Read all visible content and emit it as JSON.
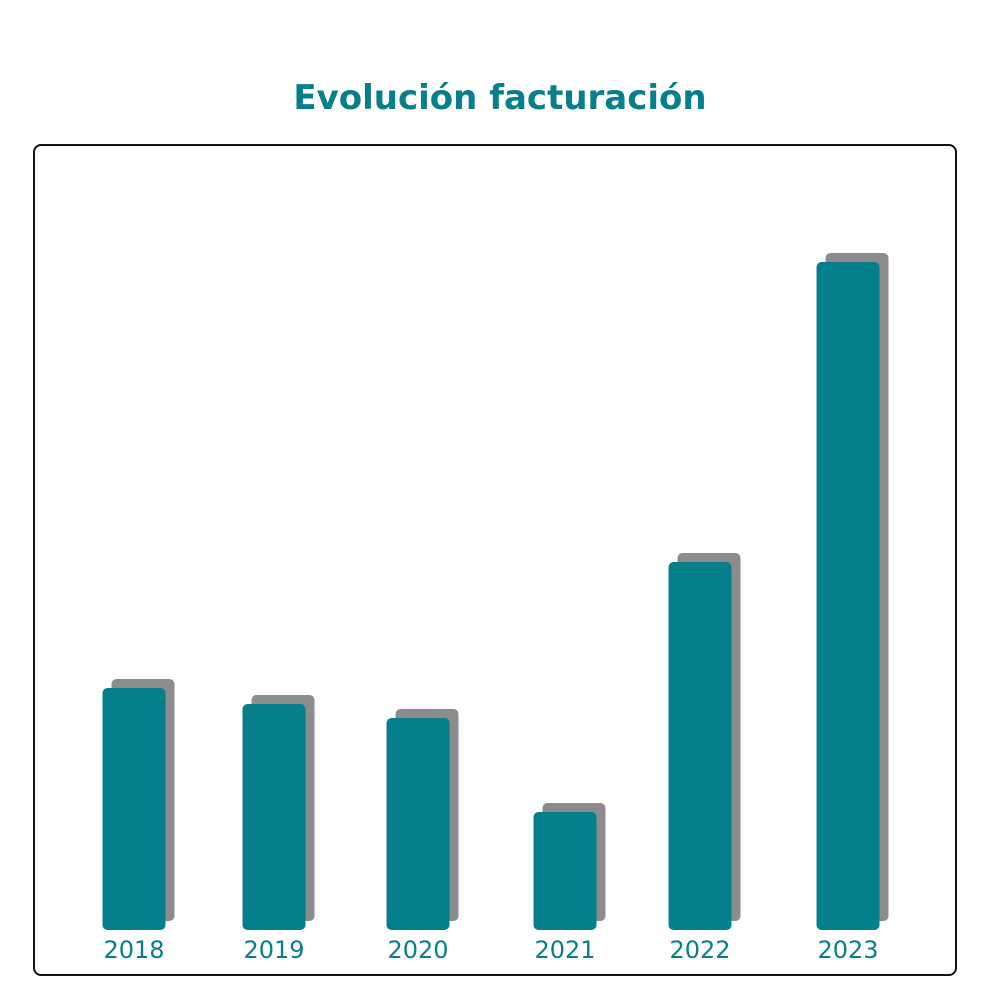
{
  "chart_data": {
    "type": "bar",
    "title": "Evolución facturación",
    "xlabel": "",
    "ylabel": "",
    "categories": [
      "2018",
      "2019",
      "2020",
      "2021",
      "2022",
      "2023"
    ],
    "values": [
      242,
      226,
      212,
      118,
      368,
      668
    ],
    "ylim": [
      0,
      700
    ],
    "grid": false,
    "legend": "none",
    "colors": {
      "bar": "#057f8c",
      "shadow": "#8c8c8c",
      "title": "#057f8c",
      "tick_label": "#057f8c",
      "frame": "#111111"
    }
  }
}
